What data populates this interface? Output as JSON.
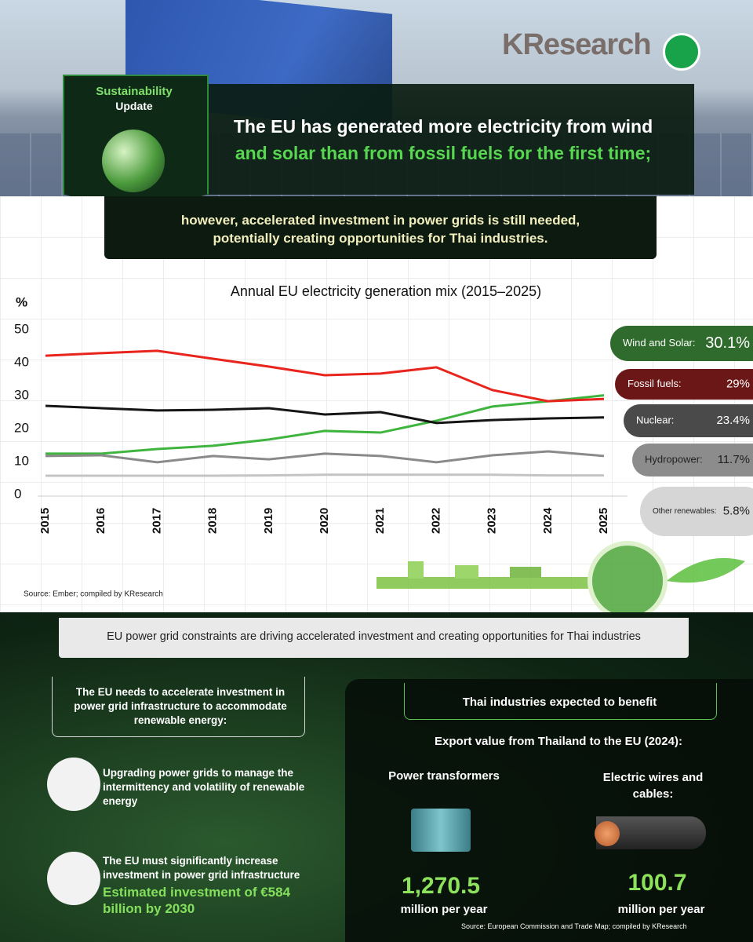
{
  "header": {
    "brand": "KResearch",
    "badge": {
      "line1": "Sustainability",
      "line2": "Update"
    },
    "headline": {
      "white": "The EU has generated more electricity from wind",
      "green": "and solar than from fossil fuels for the first time;"
    },
    "subheadline": [
      "however, accelerated investment in power grids is still needed,",
      "potentially creating opportunities for Thai industries."
    ]
  },
  "chart_data": {
    "type": "line",
    "title": "Annual EU electricity generation mix (2015–2025)",
    "y_label": "%",
    "categories": [
      "2015",
      "2016",
      "2017",
      "2018",
      "2019",
      "2020",
      "2021",
      "2022",
      "2023",
      "2024",
      "2025"
    ],
    "series": [
      {
        "name": "Wind and Solar:",
        "color": "#3fb53f",
        "pill_color": "#2f6b2c",
        "values": [
          12.4,
          12.4,
          13.8,
          14.8,
          16.7,
          19.3,
          18.8,
          22.4,
          26.7,
          28.3,
          30.1
        ],
        "value_labels": [
          null,
          null,
          null,
          null,
          null,
          null,
          null,
          null,
          null,
          null,
          "30.1%"
        ]
      },
      {
        "name": "Fossil fuels:",
        "color": "#e8241c",
        "pill_color": "#6b1717",
        "values": [
          42.1,
          42.9,
          43.6,
          41.2,
          38.8,
          36.2,
          36.7,
          38.6,
          31.7,
          28.3,
          29
        ],
        "value_labels": [
          null,
          null,
          null,
          null,
          null,
          null,
          null,
          null,
          null,
          null,
          "29%"
        ]
      },
      {
        "name": "Nuclear:",
        "color": "#151515",
        "pill_color": "#4a4a4a",
        "values": [
          26.9,
          26.2,
          25.5,
          25.7,
          26.2,
          24.3,
          25.0,
          21.7,
          22.6,
          23.1,
          23.4
        ],
        "value_labels": [
          null,
          null,
          null,
          null,
          null,
          null,
          null,
          null,
          null,
          null,
          "23.4%"
        ]
      },
      {
        "name": "Hydropower:",
        "color": "#8a8a8a",
        "pill_color": "#8c8c8c",
        "values": [
          11.7,
          11.9,
          9.8,
          11.7,
          10.7,
          12.4,
          11.7,
          9.8,
          11.9,
          13.1,
          11.7
        ],
        "value_labels": [
          null,
          null,
          null,
          null,
          null,
          null,
          null,
          null,
          null,
          null,
          "11.7%"
        ]
      },
      {
        "name": "Other renewables:",
        "color": "#c4c4c4",
        "pill_color": "#d6d6d6",
        "values": [
          5.7,
          5.7,
          5.7,
          5.7,
          5.8,
          6.0,
          6.0,
          6.0,
          6.0,
          5.8,
          5.8
        ],
        "value_labels": [
          null,
          null,
          null,
          null,
          null,
          null,
          null,
          null,
          null,
          null,
          "5.8%"
        ]
      }
    ],
    "ylim": [
      0,
      50
    ],
    "yticks": [
      0,
      10,
      20,
      30,
      40,
      50
    ],
    "grid": false,
    "source": "Source: Ember; compiled by KResearch"
  },
  "bottom": {
    "banner": "EU power grid constraints are driving accelerated investment and creating opportunities for Thai industries",
    "left": {
      "title": "The EU needs to accelerate investment in power grid infrastructure to accommodate renewable energy:",
      "items": [
        {
          "text": "Upgrading power grids to manage the intermittency and volatility of renewable energy"
        },
        {
          "text": "The EU must significantly increase investment in power grid infrastructure",
          "highlight": "Estimated investment of €584 billion by 2030"
        }
      ]
    },
    "right": {
      "title": "Thai industries expected to benefit",
      "subtitle": "Export value from Thailand to the EU (2024):",
      "products": [
        {
          "name": "Power transformers",
          "value": "1,270.5",
          "unit": "million per year"
        },
        {
          "name": "Electric wires and cables:",
          "value": "100.7",
          "unit": "million per year"
        }
      ],
      "source": "Source: European Commission and Trade Map; compiled by KResearch"
    }
  }
}
